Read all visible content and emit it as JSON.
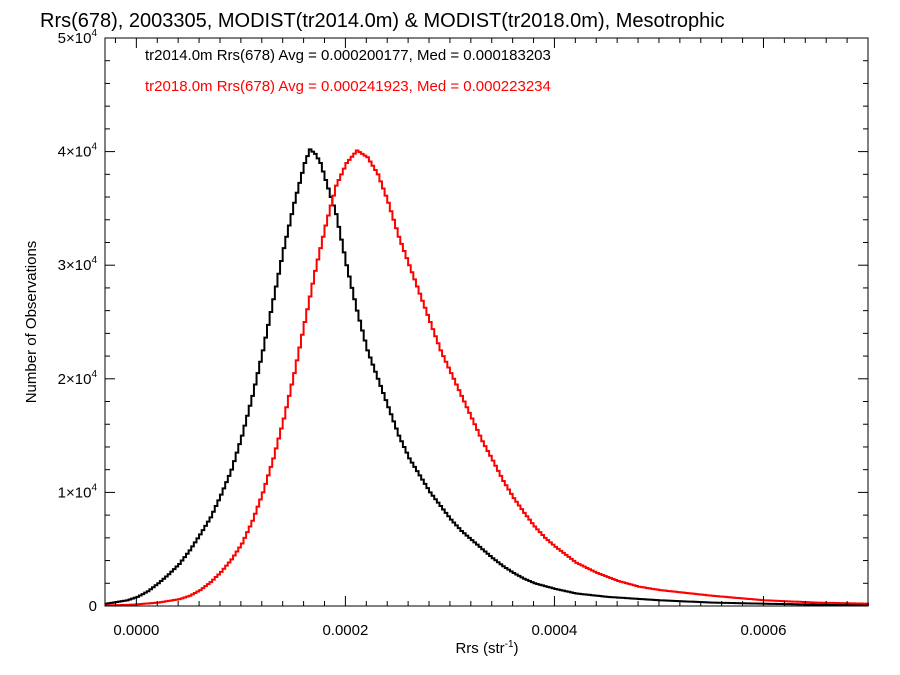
{
  "chart_data": {
    "type": "line",
    "step": true,
    "title": "Rrs(678), 2003305, MODIST(tr2014.0m) & MODIST(tr2018.0m), Mesotrophic",
    "xlabel": "Rrs (str",
    "xlabel_sup": "-1",
    "xlabel_end": ")",
    "ylabel": "Number of Observations",
    "xlim": [
      -3e-05,
      0.0007
    ],
    "ylim": [
      0,
      50000
    ],
    "x_ticks": [
      {
        "value": 0.0,
        "label": "0.0000"
      },
      {
        "value": 0.0002,
        "label": "0.0002"
      },
      {
        "value": 0.0004,
        "label": "0.0004"
      },
      {
        "value": 0.0006,
        "label": "0.0006"
      }
    ],
    "y_ticks": [
      {
        "value": 0,
        "mant": "0",
        "exp": ""
      },
      {
        "value": 10000,
        "mant": "1×10",
        "exp": "4"
      },
      {
        "value": 20000,
        "mant": "2×10",
        "exp": "4"
      },
      {
        "value": 30000,
        "mant": "3×10",
        "exp": "4"
      },
      {
        "value": 40000,
        "mant": "4×10",
        "exp": "4"
      },
      {
        "value": 50000,
        "mant": "5×10",
        "exp": "4"
      }
    ],
    "series": [
      {
        "name": "tr2014.0m",
        "legend": "tr2014.0m Rrs(678) Avg = 0.000200177, Med = 0.000183203",
        "color": "#000000",
        "points": [
          [
            -3e-05,
            200
          ],
          [
            -2e-05,
            350
          ],
          [
            -1e-05,
            500
          ],
          [
            0.0,
            800
          ],
          [
            1e-05,
            1300
          ],
          [
            2e-05,
            2000
          ],
          [
            3e-05,
            2800
          ],
          [
            4e-05,
            3700
          ],
          [
            5e-05,
            4900
          ],
          [
            6e-05,
            6300
          ],
          [
            7e-05,
            7800
          ],
          [
            8e-05,
            9800
          ],
          [
            9e-05,
            12000
          ],
          [
            0.0001,
            15000
          ],
          [
            0.00011,
            18500
          ],
          [
            0.00012,
            22500
          ],
          [
            0.00013,
            27000
          ],
          [
            0.00014,
            31500
          ],
          [
            0.00015,
            35500
          ],
          [
            0.00016,
            39000
          ],
          [
            0.000165,
            40200
          ],
          [
            0.00017,
            39800
          ],
          [
            0.000175,
            39000
          ],
          [
            0.00018,
            37500
          ],
          [
            0.00019,
            34500
          ],
          [
            0.0002,
            30000
          ],
          [
            0.00021,
            26000
          ],
          [
            0.00022,
            22500
          ],
          [
            0.00023,
            20000
          ],
          [
            0.00024,
            17500
          ],
          [
            0.00025,
            15000
          ],
          [
            0.00026,
            13000
          ],
          [
            0.00027,
            11500
          ],
          [
            0.00028,
            10000
          ],
          [
            0.00029,
            8800
          ],
          [
            0.0003,
            7600
          ],
          [
            0.00031,
            6600
          ],
          [
            0.00032,
            5800
          ],
          [
            0.00033,
            5000
          ],
          [
            0.00034,
            4200
          ],
          [
            0.00035,
            3500
          ],
          [
            0.00036,
            2900
          ],
          [
            0.00037,
            2400
          ],
          [
            0.00038,
            2000
          ],
          [
            0.0004,
            1500
          ],
          [
            0.00042,
            1100
          ],
          [
            0.00045,
            800
          ],
          [
            0.0005,
            500
          ],
          [
            0.00055,
            300
          ],
          [
            0.0006,
            200
          ],
          [
            0.00065,
            120
          ],
          [
            0.0007,
            80
          ]
        ]
      },
      {
        "name": "tr2018.0m",
        "legend": "tr2018.0m Rrs(678) Avg = 0.000241923, Med = 0.000223234",
        "color": "#ff0000",
        "points": [
          [
            -3e-05,
            50
          ],
          [
            -1e-05,
            100
          ],
          [
            0.0,
            150
          ],
          [
            2e-05,
            300
          ],
          [
            4e-05,
            600
          ],
          [
            5e-05,
            900
          ],
          [
            6e-05,
            1400
          ],
          [
            7e-05,
            2100
          ],
          [
            8e-05,
            3000
          ],
          [
            9e-05,
            4100
          ],
          [
            0.0001,
            5500
          ],
          [
            0.00011,
            7500
          ],
          [
            0.00012,
            10000
          ],
          [
            0.00013,
            13000
          ],
          [
            0.00014,
            16500
          ],
          [
            0.00015,
            20500
          ],
          [
            0.00016,
            25000
          ],
          [
            0.00017,
            29500
          ],
          [
            0.00018,
            33500
          ],
          [
            0.00019,
            37000
          ],
          [
            0.0002,
            39000
          ],
          [
            0.00021,
            40100
          ],
          [
            0.00022,
            39500
          ],
          [
            0.00023,
            38000
          ],
          [
            0.00024,
            35500
          ],
          [
            0.00025,
            32500
          ],
          [
            0.00026,
            30000
          ],
          [
            0.00027,
            27500
          ],
          [
            0.00028,
            25000
          ],
          [
            0.00029,
            22500
          ],
          [
            0.0003,
            20500
          ],
          [
            0.00031,
            18500
          ],
          [
            0.00032,
            16500
          ],
          [
            0.00033,
            14500
          ],
          [
            0.00034,
            12800
          ],
          [
            0.00035,
            11000
          ],
          [
            0.00036,
            9500
          ],
          [
            0.00037,
            8200
          ],
          [
            0.00038,
            7000
          ],
          [
            0.00039,
            6000
          ],
          [
            0.0004,
            5200
          ],
          [
            0.00042,
            3800
          ],
          [
            0.00044,
            2900
          ],
          [
            0.00046,
            2200
          ],
          [
            0.00048,
            1700
          ],
          [
            0.0005,
            1400
          ],
          [
            0.00055,
            900
          ],
          [
            0.0006,
            500
          ],
          [
            0.00065,
            300
          ],
          [
            0.0007,
            200
          ]
        ]
      }
    ]
  }
}
